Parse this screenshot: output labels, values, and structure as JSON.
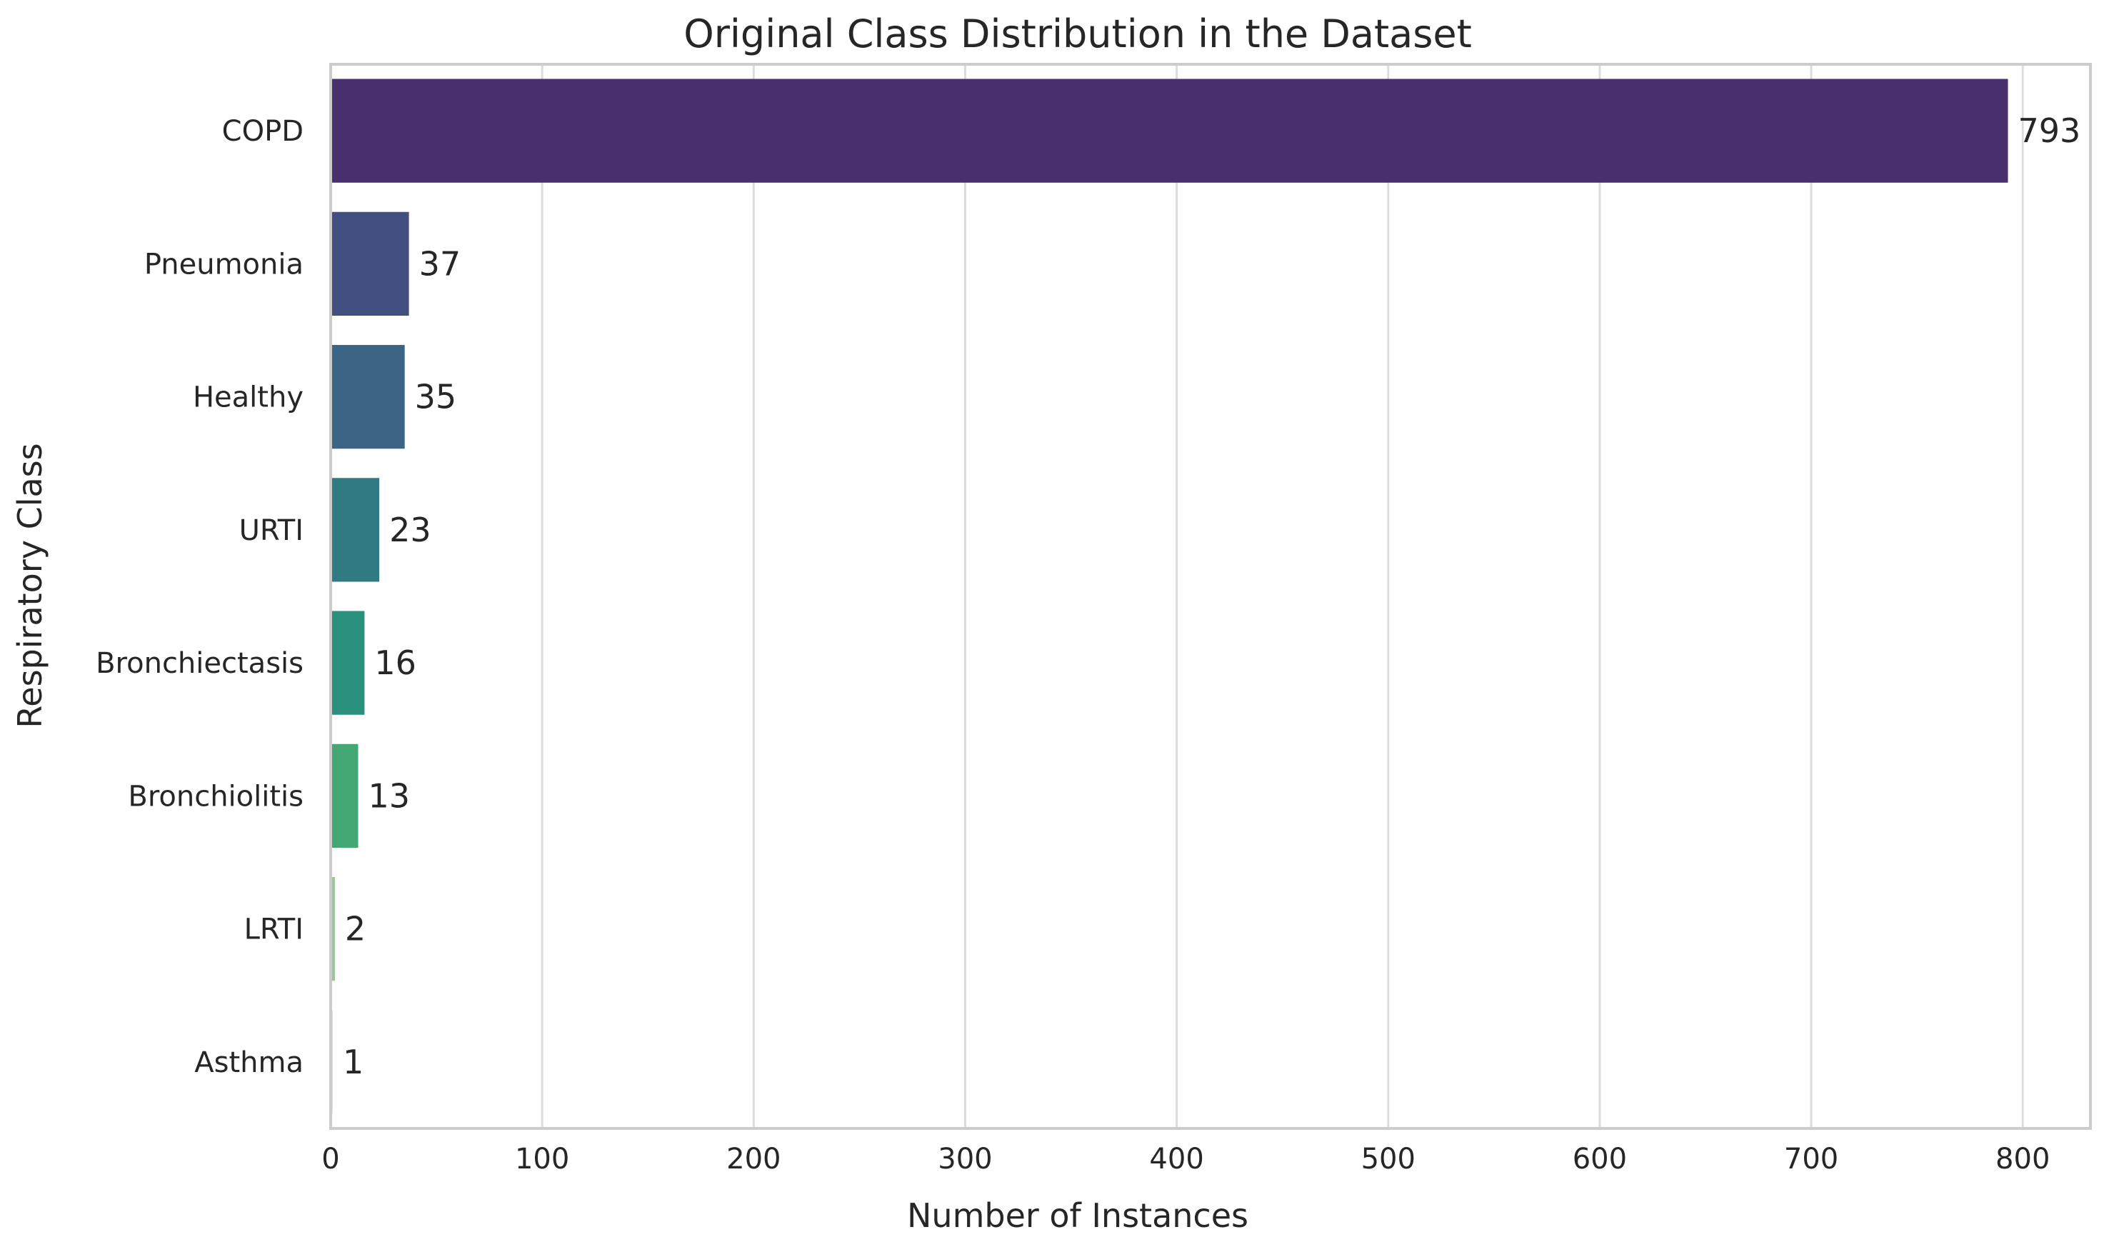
{
  "chart_data": {
    "type": "bar",
    "orientation": "horizontal",
    "title": "Original Class Distribution in the Dataset",
    "xlabel": "Number of Instances",
    "ylabel": "Respiratory Class",
    "categories": [
      "COPD",
      "Pneumonia",
      "Healthy",
      "URTI",
      "Bronchiectasis",
      "Bronchiolitis",
      "LRTI",
      "Asthma"
    ],
    "values": [
      793,
      37,
      35,
      23,
      16,
      13,
      2,
      1
    ],
    "data_labels": [
      "793",
      "37",
      "35",
      "23",
      "16",
      "13",
      "2",
      "1"
    ],
    "colors": [
      "#4a2f6f",
      "#434e81",
      "#3c6484",
      "#307a81",
      "#2a917f",
      "#44a874",
      "#9ac79a",
      "#d9e8c8"
    ],
    "xlim": [
      0,
      832
    ],
    "xticks": [
      0,
      100,
      200,
      300,
      400,
      500,
      600,
      700,
      800
    ],
    "xtick_labels": [
      "0",
      "100",
      "200",
      "300",
      "400",
      "500",
      "600",
      "700",
      "800"
    ],
    "grid": "vertical",
    "legend": "none"
  }
}
